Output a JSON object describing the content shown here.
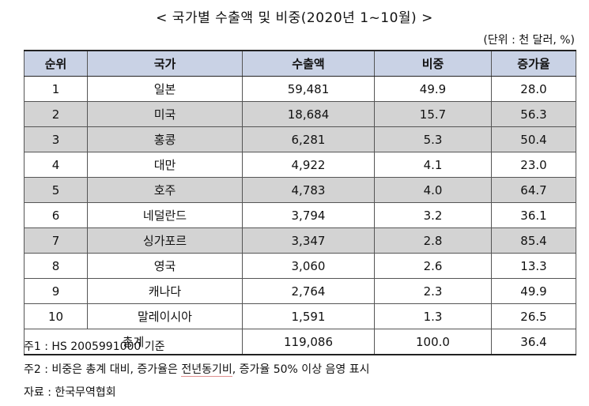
{
  "title": "< 국가별 수출액 및 비중(2020년 1~10월) >",
  "unit": "(단위 : 천 달러, %)",
  "table": {
    "headers": [
      "순위",
      "국가",
      "수출액",
      "비중",
      "증가율"
    ],
    "rows": [
      {
        "rank": "1",
        "country": "일본",
        "export": "59,481",
        "share": "49.9",
        "growth": "28.0"
      },
      {
        "rank": "2",
        "country": "미국",
        "export": "18,684",
        "share": "15.7",
        "growth": "56.3"
      },
      {
        "rank": "3",
        "country": "홍콩",
        "export": "6,281",
        "share": "5.3",
        "growth": "50.4"
      },
      {
        "rank": "4",
        "country": "대만",
        "export": "4,922",
        "share": "4.1",
        "growth": "23.0"
      },
      {
        "rank": "5",
        "country": "호주",
        "export": "4,783",
        "share": "4.0",
        "growth": "64.7"
      },
      {
        "rank": "6",
        "country": "네덜란드",
        "export": "3,794",
        "share": "3.2",
        "growth": "36.1"
      },
      {
        "rank": "7",
        "country": "싱가포르",
        "export": "3,347",
        "share": "2.8",
        "growth": "85.4"
      },
      {
        "rank": "8",
        "country": "영국",
        "export": "3,060",
        "share": "2.6",
        "growth": "13.3"
      },
      {
        "rank": "9",
        "country": "캐나다",
        "export": "2,764",
        "share": "2.3",
        "growth": "49.9"
      },
      {
        "rank": "10",
        "country": "말레이시아",
        "export": "1,591",
        "share": "1.3",
        "growth": "26.5"
      }
    ],
    "total": {
      "label": "총계",
      "export": "119,086",
      "share": "100.0",
      "growth": "36.4"
    }
  },
  "notes": {
    "note1": "주1 : HS 2005991000 기준",
    "note2_pre": "주2 : 비중은 총계 대비, 증가율은 ",
    "note2_underlined": "전년동기비",
    "note2_post": ", 증가율 50% 이상 음영 표시",
    "source": "자료 : 한국무역협회"
  }
}
